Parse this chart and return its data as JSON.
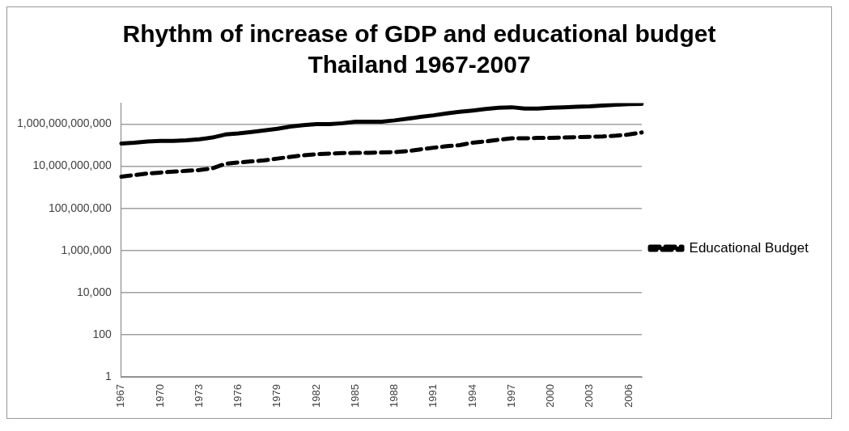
{
  "chart_data": {
    "type": "line",
    "title": "Rhythm of increase of GDP and educational budget Thailand 1967-2007",
    "categories": [
      "1967",
      null,
      null,
      "1970",
      null,
      null,
      "1973",
      null,
      null,
      "1976",
      null,
      null,
      "1979",
      null,
      null,
      "1982",
      null,
      null,
      "1985",
      null,
      null,
      "1988",
      null,
      null,
      "1991",
      null,
      null,
      "1994",
      null,
      null,
      "1997",
      null,
      null,
      "2000",
      null,
      null,
      "2003",
      null,
      null,
      "2006",
      null
    ],
    "series": [
      {
        "color": "#000000",
        "line_style": "solid",
        "values": [
          120000000000.0,
          130000000000.0,
          150000000000.0,
          160000000000.0,
          160000000000.0,
          170000000000.0,
          190000000000.0,
          230000000000.0,
          320000000000.0,
          360000000000.0,
          420000000000.0,
          500000000000.0,
          600000000000.0,
          760000000000.0,
          890000000000.0,
          1000000000000.0,
          1000000000000.0,
          1100000000000.0,
          1300000000000.0,
          1300000000000.0,
          1300000000000.0,
          1500000000000.0,
          1800000000000.0,
          2200000000000.0,
          2600000000000.0,
          3200000000000.0,
          3800000000000.0,
          4400000000000.0,
          5200000000000.0,
          6000000000000.0,
          6300000000000.0,
          5500000000000.0,
          5500000000000.0,
          5900000000000.0,
          6200000000000.0,
          6600000000000.0,
          6900000000000.0,
          7600000000000.0,
          8300000000000.0,
          8900000000000.0,
          9100000000000.0
        ]
      },
      {
        "name": "Educational Budget",
        "color": "#000000",
        "line_style": "dashed",
        "values": [
          3200000000.0,
          3800000000.0,
          4500000000.0,
          5000000000.0,
          5500000000.0,
          6000000000.0,
          6600000000.0,
          7900000000.0,
          13000000000.0,
          15000000000.0,
          17000000000.0,
          19000000000.0,
          23000000000.0,
          28000000000.0,
          33000000000.0,
          37000000000.0,
          40000000000.0,
          42000000000.0,
          43000000000.0,
          43000000000.0,
          45000000000.0,
          47000000000.0,
          52000000000.0,
          63000000000.0,
          76000000000.0,
          89000000000.0,
          100000000000.0,
          130000000000.0,
          150000000000.0,
          180000000000.0,
          210000000000.0,
          210000000000.0,
          220000000000.0,
          220000000000.0,
          230000000000.0,
          240000000000.0,
          250000000000.0,
          260000000000.0,
          280000000000.0,
          320000000000.0,
          400000000000.0
        ]
      }
    ],
    "log": "y",
    "ylim": [
      1,
      10000000000000.0
    ],
    "yticks": [
      1,
      100,
      {
        "value": 10000,
        "label": "10,000"
      },
      {
        "value": 1000000,
        "label": "1,000,000"
      },
      {
        "value": 100000000,
        "label": "100,000,000"
      },
      {
        "value": 10000000000,
        "label": "10,000,000,000"
      },
      {
        "value": 1000000000000,
        "label": "1,000,000,000,000"
      }
    ],
    "grid": "y",
    "legend": "right",
    "marker": "none"
  }
}
